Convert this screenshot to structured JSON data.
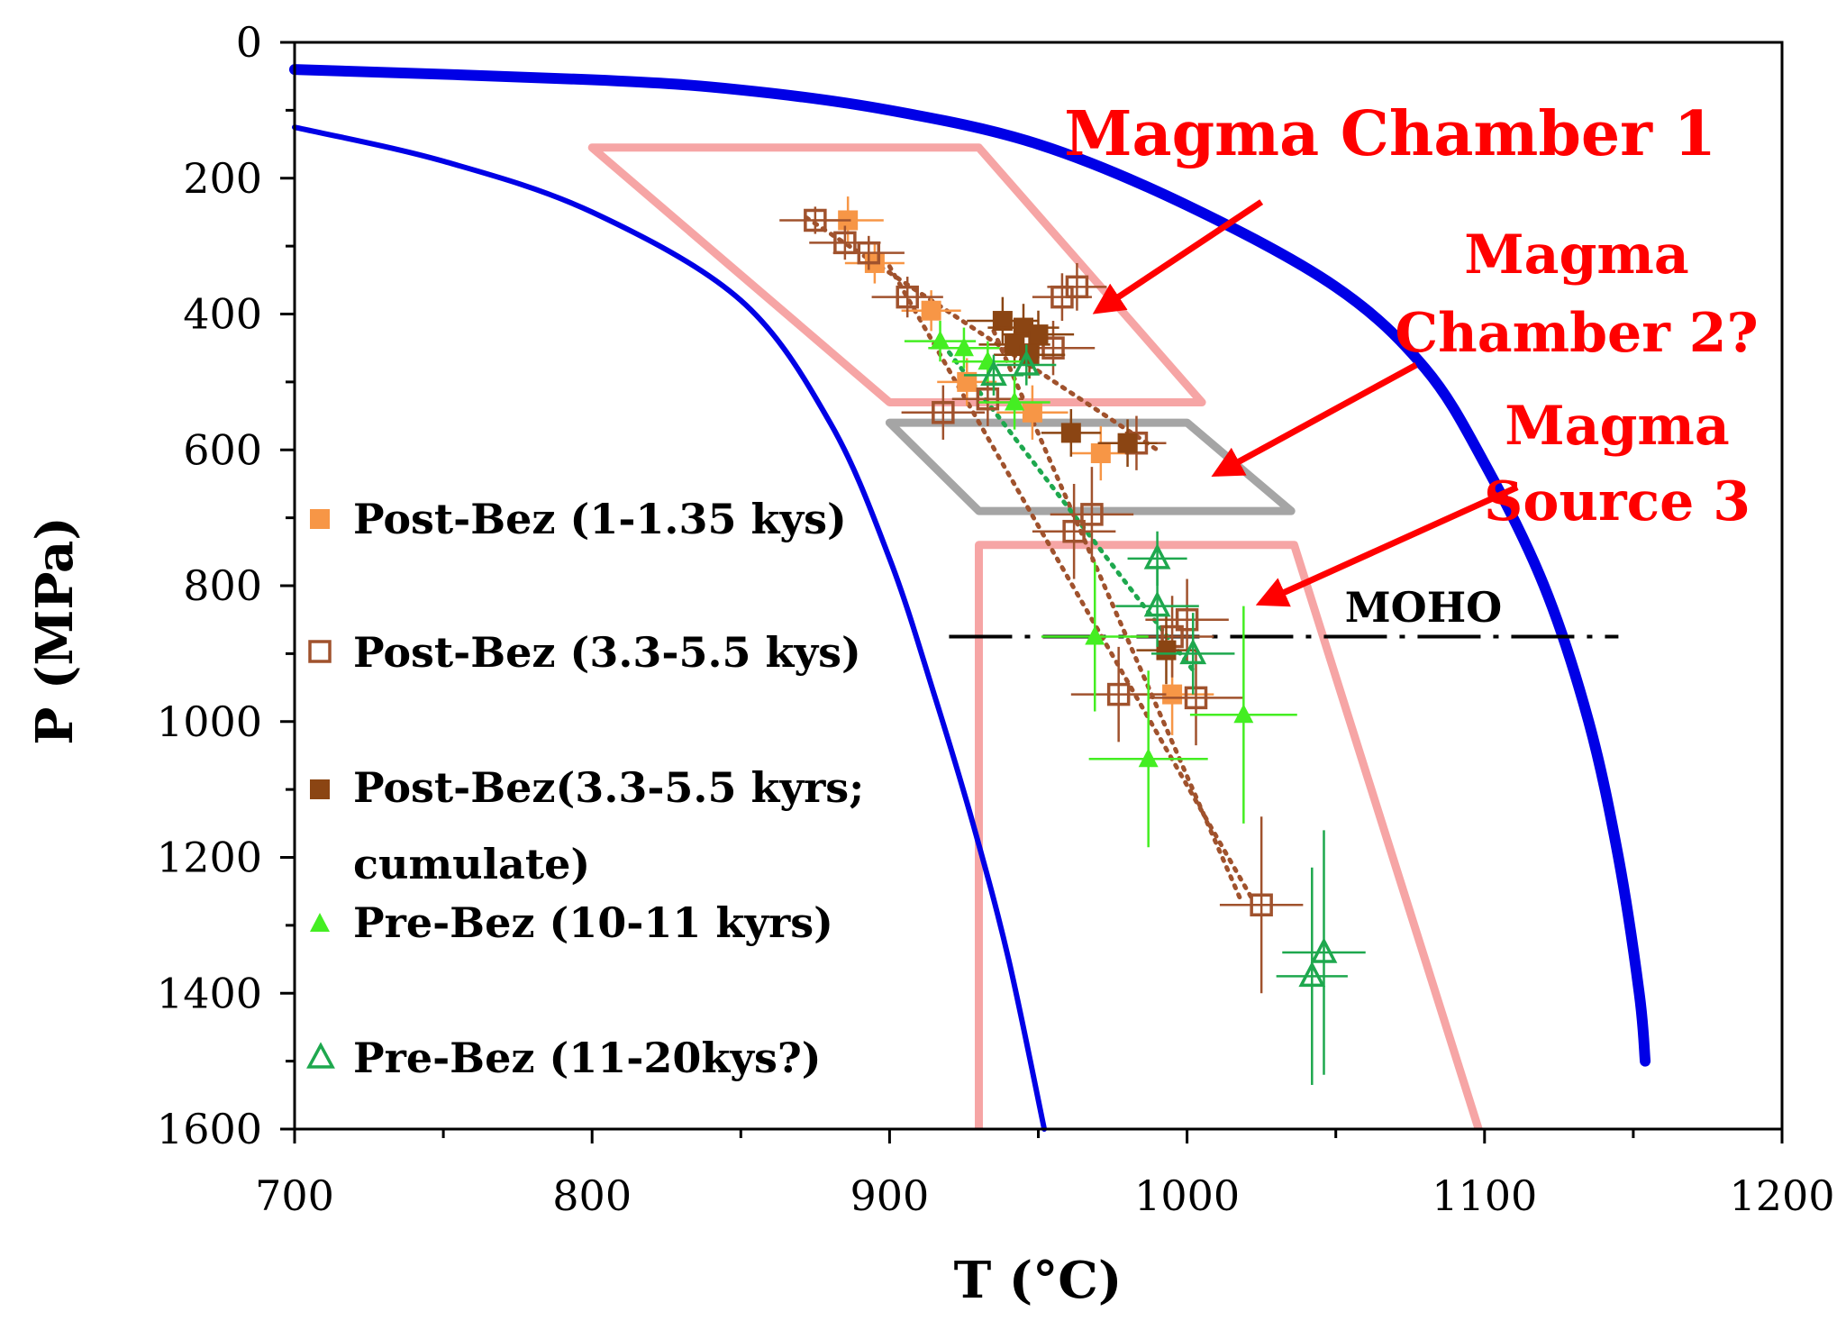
{
  "chart_data": {
    "type": "scatter",
    "xlabel": "T (°C)",
    "ylabel": "P (MPa)",
    "xlim": [
      700,
      1200
    ],
    "ylim": [
      1600,
      0
    ],
    "x_ticks": [
      700,
      800,
      900,
      1000,
      1100,
      1200
    ],
    "y_ticks": [
      0,
      200,
      400,
      600,
      800,
      1000,
      1200,
      1400,
      1600
    ],
    "grid": false,
    "legend_placement": "left",
    "colors": {
      "post_bez_1": "#f79646",
      "post_bez_3_open": "#a0522d",
      "post_bez_3_cum": "#8b4513",
      "pre_bez_10": "#44ee22",
      "pre_bez_11": "#1ea84e",
      "blue_curve": "#0000e6",
      "chamber": "#f5a0a0",
      "chamber2": "#a0a0a0",
      "annotation": "#ff0000"
    },
    "series": [
      {
        "name": "Post-Bez (1-1.35 kys)",
        "marker": "filled-square",
        "color": "#f79646",
        "points": [
          {
            "x": 886,
            "y": 262,
            "xerr": 12,
            "yerr": 35
          },
          {
            "x": 895,
            "y": 325,
            "xerr": 10,
            "yerr": 30
          },
          {
            "x": 914,
            "y": 395,
            "xerr": 10,
            "yerr": 30
          },
          {
            "x": 926,
            "y": 500,
            "xerr": 10,
            "yerr": 35
          },
          {
            "x": 948,
            "y": 545,
            "xerr": 12,
            "yerr": 40
          },
          {
            "x": 971,
            "y": 605,
            "xerr": 10,
            "yerr": 40
          },
          {
            "x": 995,
            "y": 960,
            "xerr": 14,
            "yerr": 60
          }
        ]
      },
      {
        "name": "Post-Bez (3.3-5.5 kys)",
        "marker": "open-square",
        "color": "#a0522d",
        "points": [
          {
            "x": 875,
            "y": 262,
            "xerr": 12,
            "yerr": 20
          },
          {
            "x": 885,
            "y": 295,
            "xerr": 12,
            "yerr": 25
          },
          {
            "x": 893,
            "y": 310,
            "xerr": 12,
            "yerr": 25
          },
          {
            "x": 906,
            "y": 375,
            "xerr": 12,
            "yerr": 30
          },
          {
            "x": 963,
            "y": 360,
            "xerr": 10,
            "yerr": 35
          },
          {
            "x": 958,
            "y": 375,
            "xerr": 10,
            "yerr": 35
          },
          {
            "x": 955,
            "y": 450,
            "xerr": 14,
            "yerr": 40
          },
          {
            "x": 918,
            "y": 545,
            "xerr": 14,
            "yerr": 40
          },
          {
            "x": 933,
            "y": 525,
            "xerr": 12,
            "yerr": 40
          },
          {
            "x": 983,
            "y": 590,
            "xerr": 10,
            "yerr": 40
          },
          {
            "x": 962,
            "y": 720,
            "xerr": 14,
            "yerr": 70
          },
          {
            "x": 968,
            "y": 695,
            "xerr": 14,
            "yerr": 70
          },
          {
            "x": 995,
            "y": 875,
            "xerr": 14,
            "yerr": 60
          },
          {
            "x": 1000,
            "y": 850,
            "xerr": 14,
            "yerr": 60
          },
          {
            "x": 977,
            "y": 960,
            "xerr": 16,
            "yerr": 70
          },
          {
            "x": 1003,
            "y": 965,
            "xerr": 16,
            "yerr": 70
          },
          {
            "x": 1025,
            "y": 1270,
            "xerr": 14,
            "yerr": 130
          }
        ]
      },
      {
        "name": "Post-Bez(3.3-5.5 kyrs; cumulate)",
        "marker": "filled-square",
        "color": "#8b4513",
        "points": [
          {
            "x": 938,
            "y": 410,
            "xerr": 12,
            "yerr": 35
          },
          {
            "x": 945,
            "y": 420,
            "xerr": 12,
            "yerr": 35
          },
          {
            "x": 950,
            "y": 430,
            "xerr": 12,
            "yerr": 35
          },
          {
            "x": 942,
            "y": 445,
            "xerr": 12,
            "yerr": 35
          },
          {
            "x": 947,
            "y": 460,
            "xerr": 12,
            "yerr": 35
          },
          {
            "x": 961,
            "y": 575,
            "xerr": 10,
            "yerr": 35
          },
          {
            "x": 980,
            "y": 590,
            "xerr": 10,
            "yerr": 35
          },
          {
            "x": 993,
            "y": 895,
            "xerr": 10,
            "yerr": 50
          }
        ]
      },
      {
        "name": "Pre-Bez (10-11 kyrs)",
        "marker": "filled-triangle",
        "color": "#44ee22",
        "points": [
          {
            "x": 917,
            "y": 440,
            "xerr": 12,
            "yerr": 30
          },
          {
            "x": 925,
            "y": 450,
            "xerr": 12,
            "yerr": 30
          },
          {
            "x": 933,
            "y": 470,
            "xerr": 12,
            "yerr": 30
          },
          {
            "x": 942,
            "y": 530,
            "xerr": 12,
            "yerr": 40
          },
          {
            "x": 969,
            "y": 875,
            "xerr": 18,
            "yerr": 110
          },
          {
            "x": 987,
            "y": 1055,
            "xerr": 20,
            "yerr": 130
          },
          {
            "x": 1019,
            "y": 990,
            "xerr": 18,
            "yerr": 160
          }
        ]
      },
      {
        "name": "Pre-Bez (11-20kys?)",
        "marker": "open-triangle",
        "color": "#1ea84e",
        "points": [
          {
            "x": 935,
            "y": 490,
            "xerr": 10,
            "yerr": 30
          },
          {
            "x": 946,
            "y": 475,
            "xerr": 10,
            "yerr": 30
          },
          {
            "x": 990,
            "y": 760,
            "xerr": 10,
            "yerr": 40
          },
          {
            "x": 990,
            "y": 830,
            "xerr": 14,
            "yerr": 60
          },
          {
            "x": 1002,
            "y": 900,
            "xerr": 14,
            "yerr": 60
          },
          {
            "x": 1042,
            "y": 1375,
            "xerr": 12,
            "yerr": 160
          },
          {
            "x": 1046,
            "y": 1340,
            "xerr": 14,
            "yerr": 180
          }
        ]
      }
    ],
    "trend_lines": [
      {
        "color": "#a0522d",
        "points": [
          [
            872,
            258
          ],
          [
            990,
            600
          ]
        ]
      },
      {
        "color": "#a0522d",
        "points": [
          [
            900,
            330
          ],
          [
            1022,
            1262
          ]
        ]
      },
      {
        "color": "#a0522d",
        "points": [
          [
            935,
            425
          ],
          [
            1018,
            1262
          ]
        ]
      },
      {
        "color": "#1ea84e",
        "points": [
          [
            918,
            445
          ],
          [
            1003,
            930
          ]
        ]
      }
    ],
    "curves": [
      {
        "color": "#0000e6",
        "width": 12,
        "points": [
          [
            700,
            40
          ],
          [
            800,
            55
          ],
          [
            850,
            70
          ],
          [
            900,
            100
          ],
          [
            950,
            150
          ],
          [
            1000,
            240
          ],
          [
            1050,
            360
          ],
          [
            1080,
            480
          ],
          [
            1100,
            620
          ],
          [
            1120,
            800
          ],
          [
            1135,
            1000
          ],
          [
            1145,
            1200
          ],
          [
            1152,
            1400
          ],
          [
            1154,
            1500
          ]
        ]
      },
      {
        "color": "#0000e6",
        "width": 6,
        "points": [
          [
            700,
            125
          ],
          [
            750,
            175
          ],
          [
            800,
            250
          ],
          [
            850,
            380
          ],
          [
            880,
            560
          ],
          [
            900,
            760
          ],
          [
            915,
            960
          ],
          [
            928,
            1150
          ],
          [
            940,
            1350
          ],
          [
            952,
            1600
          ]
        ]
      }
    ],
    "regions": [
      {
        "label": "Magma Chamber 1",
        "color": "#f5a0a0",
        "points": [
          [
            800,
            155
          ],
          [
            930,
            155
          ],
          [
            1005,
            530
          ],
          [
            900,
            530
          ]
        ]
      },
      {
        "label": "Magma Chamber 2?",
        "color": "#a0a0a0",
        "points": [
          [
            900,
            560
          ],
          [
            1000,
            560
          ],
          [
            1035,
            690
          ],
          [
            930,
            690
          ]
        ]
      },
      {
        "label": "Magma Source 3",
        "color": "#f5a0a0",
        "points": [
          [
            930,
            1600
          ],
          [
            930,
            740
          ],
          [
            1036,
            740
          ],
          [
            1098,
            1600
          ]
        ]
      }
    ],
    "moho": {
      "label": "MOHO",
      "y": 875,
      "x_range": [
        920,
        1145
      ]
    },
    "annotations": [
      {
        "text": "Magma Chamber 1",
        "arrow_from": [
          1025,
          235
        ],
        "arrow_to": [
          970,
          395
        ]
      },
      {
        "text": "Magma Chamber 2?",
        "arrow_from": [
          1077,
          475
        ],
        "arrow_to": [
          1010,
          635
        ]
      },
      {
        "text": "Magma Source 3",
        "arrow_from": [
          1111,
          655
        ],
        "arrow_to": [
          1025,
          825
        ]
      }
    ],
    "legend": [
      "Post-Bez (1-1.35 kys)",
      "Post-Bez (3.3-5.5 kys)",
      "Post-Bez(3.3-5.5 kyrs;",
      "cumulate)",
      "Pre-Bez (10-11 kyrs)",
      "Pre-Bez (11-20kys?)"
    ]
  }
}
